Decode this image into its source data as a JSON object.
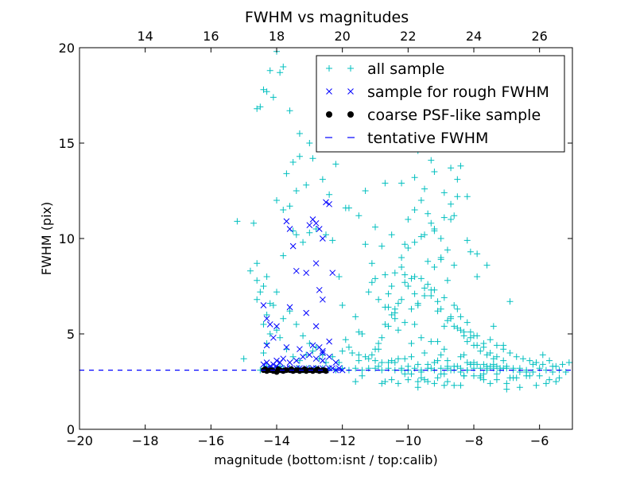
{
  "chart_data": {
    "type": "scatter",
    "title": "FWHM vs magnitudes",
    "xlabel": "magnitude (bottom:isnt / top:calib)",
    "ylabel": "FWHM (pix)",
    "xlim": [
      -20,
      -5
    ],
    "ylim": [
      0,
      20
    ],
    "x_ticks": [
      -20,
      -18,
      -16,
      -14,
      -12,
      -10,
      -8,
      -6
    ],
    "y_ticks": [
      0,
      5,
      10,
      15,
      20
    ],
    "x_tick_labels": [
      "−20",
      "−18",
      "−16",
      "−14",
      "−12",
      "−10",
      "−8",
      "−6"
    ],
    "top_axis": {
      "ticks": [
        14,
        16,
        18,
        20,
        22,
        24,
        26
      ],
      "tick_labels": [
        "14",
        "16",
        "18",
        "20",
        "22",
        "24",
        "26"
      ],
      "offset_from_bottom": 32
    },
    "grid": false,
    "legend_position": "top-right",
    "colors": {
      "all_sample": "#00bfbf",
      "rough_fwhm": "#0000ff",
      "psf_like": "#000000",
      "tentative": "#0000ff"
    },
    "series": [
      {
        "name": "all sample",
        "marker": "plus",
        "x": [
          -14.5,
          -14.4,
          -14.3,
          -14.2,
          -14.1,
          -14.0,
          -13.9,
          -13.8,
          -13.6,
          -13.5,
          -13.4,
          -13.3,
          -13.2,
          -13.1,
          -13.0,
          -12.9,
          -12.8,
          -12.6,
          -12.4,
          -12.2,
          -12.0,
          -11.8,
          -11.6,
          -11.4,
          -11.2,
          -11.0,
          -10.8,
          -10.6,
          -10.4,
          -10.2,
          -10.0,
          -9.8,
          -9.6,
          -9.4,
          -9.2,
          -9.0,
          -8.8,
          -8.6,
          -8.4,
          -8.2,
          -8.0,
          -7.8,
          -7.6,
          -7.4,
          -7.2,
          -7.0,
          -6.8,
          -6.6,
          -6.4,
          -6.2,
          -6.0,
          -5.8,
          -5.6,
          -5.4,
          -5.2,
          -14.4,
          -14.3,
          -14.2,
          -14.4,
          -14.3,
          -14.1,
          -14.0,
          -13.9,
          -13.7,
          -13.5,
          -13.3,
          -13.1,
          -12.9,
          -12.7,
          -12.5,
          -13.8,
          -13.6,
          -13.4,
          -13.2,
          -13.0,
          -12.8,
          -12.6,
          -12.3,
          -14.5,
          -14.6,
          -14.8,
          -15.2,
          -15.0,
          -14.7,
          -14.6,
          -14.6,
          -14.4,
          -14.3,
          -14.2,
          -14.0,
          -13.8,
          -13.5,
          -13.4,
          -13.2,
          -13.0,
          -12.8,
          -12.5,
          -12.3,
          -12.1,
          -12.0,
          -14.0,
          -13.8,
          -13.6,
          -13.7,
          -13.5,
          -13.4,
          -13.3,
          -13.1,
          -12.9,
          -12.7,
          -12.4,
          -14.3,
          -14.2,
          -14.1,
          -14.0,
          -13.9,
          -13.8,
          -14.6,
          -14.5,
          -14.4,
          -13.6,
          -13.3,
          -13.0,
          -12.6,
          -12.2,
          -11.9,
          -11.5,
          -11.3,
          -11.1,
          -11.0,
          -10.9,
          -10.7,
          -10.5,
          -10.3,
          -10.1,
          -9.9,
          -9.7,
          -9.5,
          -9.3,
          -9.1,
          -8.9,
          -8.7,
          -8.5,
          -8.3,
          -8.1,
          -7.9,
          -7.7,
          -7.5,
          -7.3,
          -7.1,
          -6.9,
          -6.7,
          -6.5,
          -6.3,
          -6.1,
          -5.9,
          -5.7,
          -5.5,
          -5.3,
          -5.1,
          -10.9,
          -10.7,
          -10.5,
          -10.3,
          -10.1,
          -9.9,
          -9.7,
          -9.5,
          -9.3,
          -9.1,
          -8.9,
          -8.7,
          -8.5,
          -8.3,
          -8.1,
          -7.9,
          -7.7,
          -7.5,
          -7.3,
          -7.1,
          -11.4,
          -11.0,
          -10.8,
          -10.6,
          -10.4,
          -10.2,
          -10.0,
          -9.8,
          -9.6,
          -9.4,
          -9.2,
          -9.0,
          -8.8,
          -8.6,
          -8.4,
          -8.2,
          -8.0,
          -7.8,
          -7.6,
          -7.4,
          -10.6,
          -10.4,
          -10.2,
          -10.0,
          -9.8,
          -9.6,
          -9.4,
          -9.2,
          -9.0,
          -8.8,
          -8.6,
          -8.4,
          -8.2,
          -8.0,
          -10.5,
          -10.0,
          -9.8,
          -9.6,
          -9.4,
          -9.2,
          -9.0,
          -8.8,
          -8.6,
          -9.8,
          -9.5,
          -9.2,
          -8.9,
          -8.6,
          -9.7,
          -9.3,
          -9.0,
          -8.7,
          -9.5,
          -9.1,
          -8.8,
          -10.2,
          -9.4,
          -8.9,
          -8.5,
          -9.9,
          -9.0,
          -8.4,
          -10.8,
          -9.6,
          -8.7,
          -8.2,
          -10.1,
          -9.3,
          -8.5,
          -7.9,
          -11.2,
          -10.7,
          -9.8,
          -9.1,
          -8.3,
          -7.7,
          -11.6,
          -10.9,
          -10.3,
          -9.5,
          -8.8,
          -8.1,
          -7.5,
          -11.9,
          -11.1,
          -10.5,
          -9.9,
          -9.2,
          -8.6,
          -7.9,
          -7.3,
          -12.0,
          -11.3,
          -10.8,
          -10.1,
          -9.4,
          -8.8,
          -8.2,
          -7.6,
          -7.0,
          -11.8,
          -11.5,
          -11.0,
          -10.4,
          -9.7,
          -9.1,
          -8.5,
          -8.0,
          -7.4,
          -6.8,
          -11.7,
          -11.2,
          -10.6,
          -10.0,
          -9.3,
          -8.7,
          -8.1,
          -7.6,
          -7.1,
          -6.6,
          -6.2,
          -11.5,
          -10.9,
          -10.2,
          -9.6,
          -9.0,
          -8.4,
          -7.8,
          -7.3,
          -6.9,
          -6.4,
          -6.0,
          -5.6,
          -12.1,
          -11.4,
          -10.7,
          -10.1,
          -9.5,
          -8.9,
          -8.3,
          -7.7,
          -7.2,
          -6.7,
          -6.3,
          -5.8,
          -5.4,
          -11.6,
          -10.5,
          -9.7,
          -8.9,
          -8.2,
          -7.5,
          -6.8,
          -6.1,
          -5.5,
          -10.8,
          -9.9,
          -9.1,
          -8.4,
          -7.7,
          -7.0,
          -6.4,
          -5.7,
          -10.3,
          -9.6,
          -8.8,
          -8.0,
          -7.3,
          -6.6,
          -9.4,
          -8.6,
          -7.8,
          -7.0,
          -10.0,
          -9.2,
          -8.3,
          -9.7,
          -8.9,
          -10.4,
          -9.0,
          -10.6,
          -9.3,
          -8.1,
          -11.0,
          -9.8,
          -8.5,
          -10.2,
          -8.7,
          -9.5,
          -11.3,
          -10.1,
          -8.9,
          -7.6,
          -10.7,
          -9.2,
          -7.9,
          -11.8,
          -10.4,
          -9.0,
          -7.4,
          -11.1,
          -9.6,
          -8.2,
          -6.9,
          -11.5,
          -9.9,
          -8.4,
          -7.1,
          -5.9
        ],
        "y": [
          3.1,
          3.2,
          3.3,
          3.2,
          3.1,
          3.2,
          3.3,
          3.2,
          3.2,
          3.1,
          3.2,
          3.2,
          3.1,
          3.2,
          3.2,
          3.1,
          3.2,
          3.2,
          3.2,
          3.1,
          3.2,
          3.1,
          3.2,
          3.1,
          3.2,
          3.2,
          3.1,
          3.2,
          3.1,
          3.2,
          3.1,
          3.2,
          3.1,
          3.2,
          3.1,
          3.2,
          3.2,
          3.1,
          3.2,
          3.1,
          3.2,
          3.2,
          3.1,
          3.2,
          3.1,
          3.2,
          3.1,
          3.2,
          3.1,
          3.0,
          3.2,
          3.1,
          3.0,
          3.1,
          3.0,
          4.0,
          4.5,
          5.0,
          5.5,
          6.0,
          6.5,
          5.2,
          4.8,
          4.2,
          3.8,
          3.6,
          3.9,
          4.1,
          3.7,
          3.5,
          5.8,
          6.2,
          5.5,
          4.9,
          4.5,
          4.3,
          3.9,
          3.8,
          7.2,
          7.8,
          8.3,
          10.9,
          3.7,
          10.8,
          8.7,
          6.8,
          7.5,
          8.0,
          6.6,
          7.2,
          9.1,
          10.4,
          10.2,
          9.8,
          10.3,
          10.5,
          10.2,
          9.9,
          8.0,
          6.5,
          12.0,
          11.5,
          11.7,
          13.4,
          14.0,
          12.5,
          15.5,
          12.8,
          14.2,
          15.6,
          12.3,
          17.7,
          18.8,
          17.4,
          19.8,
          18.7,
          19.0,
          16.8,
          16.9,
          17.8,
          16.7,
          14.3,
          15.0,
          13.1,
          13.9,
          11.6,
          11.2,
          9.7,
          8.7,
          7.9,
          6.8,
          8.1,
          7.5,
          6.6,
          7.7,
          7.9,
          6.5,
          7.4,
          7.0,
          6.2,
          5.4,
          5.8,
          6.3,
          4.9,
          5.1,
          4.9,
          4.5,
          4.7,
          4.4,
          4.2,
          4.0,
          3.8,
          3.7,
          3.6,
          3.5,
          3.4,
          3.6,
          3.3,
          3.4,
          3.5,
          4.5,
          5.5,
          6.0,
          5.2,
          5.6,
          6.3,
          6.6,
          7.0,
          7.3,
          6.7,
          6.9,
          5.9,
          5.3,
          5.1,
          4.8,
          4.4,
          4.3,
          4.0,
          3.8,
          3.6,
          5.0,
          4.2,
          4.8,
          5.4,
          6.1,
          6.8,
          7.5,
          8.0,
          7.9,
          7.6,
          7.3,
          6.3,
          5.7,
          5.4,
          5.2,
          4.6,
          4.4,
          4.1,
          3.9,
          3.7,
          7.1,
          8.2,
          9.0,
          9.5,
          9.8,
          10.1,
          8.8,
          8.5,
          8.9,
          7.8,
          6.5,
          5.9,
          5.6,
          4.9,
          10.2,
          11.0,
          11.5,
          12.0,
          11.3,
          10.5,
          10.0,
          9.4,
          8.6,
          13.2,
          12.6,
          13.5,
          12.4,
          11.2,
          14.6,
          14.1,
          15.3,
          13.7,
          16.4,
          17.1,
          14.8,
          12.9,
          17.6,
          18.2,
          15.7,
          16.1,
          19.0,
          13.8,
          9.6,
          19.3,
          11.0,
          12.2,
          8.1,
          10.8,
          13.1,
          9.2,
          7.2,
          6.4,
          5.5,
          4.6,
          3.9,
          3.4,
          5.9,
          4.2,
          3.7,
          4.0,
          3.6,
          3.4,
          3.3,
          4.7,
          3.9,
          3.6,
          3.8,
          3.5,
          3.3,
          3.4,
          3.3,
          4.1,
          3.8,
          3.5,
          3.7,
          3.4,
          3.3,
          3.5,
          3.2,
          3.3,
          4.3,
          3.9,
          3.6,
          3.5,
          3.4,
          3.6,
          3.3,
          3.5,
          3.4,
          3.2,
          4.0,
          3.7,
          3.5,
          3.3,
          3.2,
          3.1,
          3.4,
          3.3,
          3.2,
          3.0,
          3.4,
          3.6,
          3.3,
          3.1,
          3.0,
          2.9,
          3.0,
          2.8,
          2.9,
          2.7,
          3.0,
          2.8,
          3.3,
          3.5,
          2.8,
          2.5,
          2.9,
          2.6,
          2.3,
          2.8,
          2.9,
          3.2,
          2.7,
          2.8,
          2.4,
          2.7,
          2.5,
          2.6,
          2.2,
          2.9,
          3.1,
          2.4,
          2.7,
          2.3,
          2.5,
          2.4,
          2.9,
          2.7,
          2.3,
          2.6,
          2.4,
          2.8,
          2.6,
          2.4,
          2.7,
          2.5,
          2.8,
          2.6,
          2.2,
          2.5,
          2.3,
          2.7,
          2.1,
          2.6,
          2.4,
          2.8,
          2.5,
          4.2,
          5.8,
          3.9,
          6.4,
          4.6,
          9.3,
          10.6,
          7.1,
          12.2,
          8.5,
          11.8,
          10.2,
          12.5,
          9.7,
          11.1,
          8.6,
          12.9,
          10.4,
          8.0,
          11.6,
          6.3,
          9.0,
          5.4,
          7.7,
          4.8,
          9.9,
          6.7,
          5.1,
          4.5,
          3.8,
          4.4,
          3.9
        ]
      },
      {
        "name": "sample for rough FWHM",
        "marker": "x",
        "x": [
          -14.3,
          -14.2,
          -14.1,
          -14.0,
          -13.9,
          -13.8,
          -13.7,
          -13.6,
          -13.5,
          -13.4,
          -13.3,
          -13.2,
          -13.1,
          -13.0,
          -12.9,
          -12.8,
          -12.7,
          -12.6,
          -12.5,
          -12.4,
          -12.3,
          -12.2,
          -12.1,
          -12.0,
          -14.4,
          -14.3,
          -14.2,
          -14.1,
          -14.0,
          -13.9,
          -13.8,
          -13.6,
          -13.4,
          -13.2,
          -13.0,
          -12.8,
          -12.6,
          -12.4,
          -12.2,
          -14.4,
          -14.3,
          -14.2,
          -14.0,
          -13.6,
          -13.1,
          -12.8,
          -12.6,
          -12.4,
          -14.3,
          -14.1,
          -13.7,
          -13.3,
          -12.9,
          -12.7,
          -12.6,
          -13.7,
          -13.6,
          -13.5,
          -13.4,
          -13.1,
          -13.0,
          -12.9,
          -12.8,
          -12.7,
          -12.6,
          -12.5,
          -12.4,
          -12.8,
          -12.7,
          -12.6,
          -12.3
        ],
        "y": [
          3.2,
          3.1,
          3.2,
          3.3,
          3.2,
          3.1,
          3.2,
          3.2,
          3.1,
          3.2,
          3.2,
          3.1,
          3.2,
          3.1,
          3.2,
          3.2,
          3.1,
          3.2,
          3.1,
          3.2,
          3.2,
          3.1,
          3.2,
          3.1,
          3.4,
          3.5,
          3.3,
          3.4,
          3.6,
          3.5,
          3.7,
          3.5,
          3.6,
          3.8,
          3.9,
          3.7,
          3.6,
          3.8,
          3.5,
          6.5,
          5.8,
          5.5,
          5.4,
          6.4,
          6.1,
          5.4,
          4.0,
          4.6,
          4.4,
          4.8,
          4.3,
          4.2,
          4.4,
          4.3,
          4.1,
          10.9,
          10.5,
          9.6,
          8.3,
          8.2,
          10.7,
          11.0,
          10.8,
          10.5,
          10.0,
          11.9,
          11.8,
          8.7,
          7.3,
          6.8,
          8.2
        ]
      },
      {
        "name": "coarse PSF-like sample",
        "marker": "dot",
        "x": [
          -14.4,
          -14.3,
          -14.2,
          -14.1,
          -14.0,
          -13.9,
          -13.8,
          -13.7,
          -13.6,
          -13.5,
          -13.4,
          -13.3,
          -13.2,
          -13.1,
          -13.0,
          -12.9,
          -12.8,
          -12.7,
          -12.6,
          -12.5,
          -14.35,
          -14.15,
          -13.95,
          -13.75,
          -13.55,
          -13.35,
          -13.15,
          -12.95,
          -12.75,
          -12.55
        ],
        "y": [
          3.1,
          3.05,
          3.1,
          3.05,
          3.0,
          3.1,
          3.05,
          3.1,
          3.1,
          3.05,
          3.1,
          3.05,
          3.1,
          3.05,
          3.1,
          3.05,
          3.1,
          3.05,
          3.1,
          3.05,
          3.15,
          3.1,
          3.15,
          3.1,
          3.15,
          3.1,
          3.15,
          3.1,
          3.15,
          3.1
        ]
      },
      {
        "name": "tentative FWHM",
        "marker": "dashed-line",
        "x": [
          -20,
          -5
        ],
        "y": [
          3.1,
          3.1
        ]
      }
    ]
  }
}
